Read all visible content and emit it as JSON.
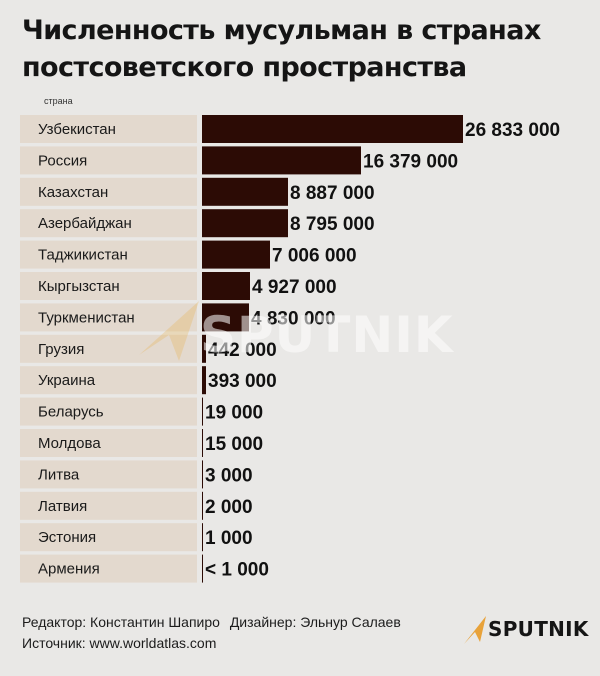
{
  "title": "Численность мусульман в странах постсоветского пространства",
  "column_header": "страна",
  "colors": {
    "background": "#e9e8e6",
    "label_cell": "#e3d9ce",
    "bar": "#2c0b05",
    "watermark_accent": "#e8b14a"
  },
  "chart_data": {
    "type": "bar",
    "orientation": "horizontal",
    "categories": [
      "Узбекистан",
      "Россия",
      "Казахстан",
      "Азербайджан",
      "Таджикистан",
      "Кыргызстан",
      "Туркменистан",
      "Грузия",
      "Украина",
      "Беларусь",
      "Молдова",
      "Литва",
      "Латвия",
      "Эстония",
      "Армения"
    ],
    "values": [
      26833000,
      16379000,
      8887000,
      8795000,
      7006000,
      4927000,
      4830000,
      442000,
      393000,
      19000,
      15000,
      3000,
      2000,
      1000,
      1000
    ],
    "value_labels": [
      "26 833 000",
      "16 379 000",
      "8 887 000",
      "8 795 000",
      "7 006 000",
      "4 927 000",
      "4 830 000",
      "442 000",
      "393 000",
      "19 000",
      "15 000",
      "3 000",
      "2 000",
      "1 000",
      "< 1 000"
    ],
    "xlim": [
      0,
      26833000
    ],
    "grid": false,
    "legend": "none"
  },
  "watermark": "SPUTNIK",
  "footer": {
    "editor": "Редактор: Константин Шапиро",
    "designer": "Дизайнер: Эльнур Салаев",
    "source": "Источник: www.worldatlas.com"
  },
  "brand": {
    "name": "SPUTNIK",
    "icon": "sputnik-logo-icon"
  }
}
